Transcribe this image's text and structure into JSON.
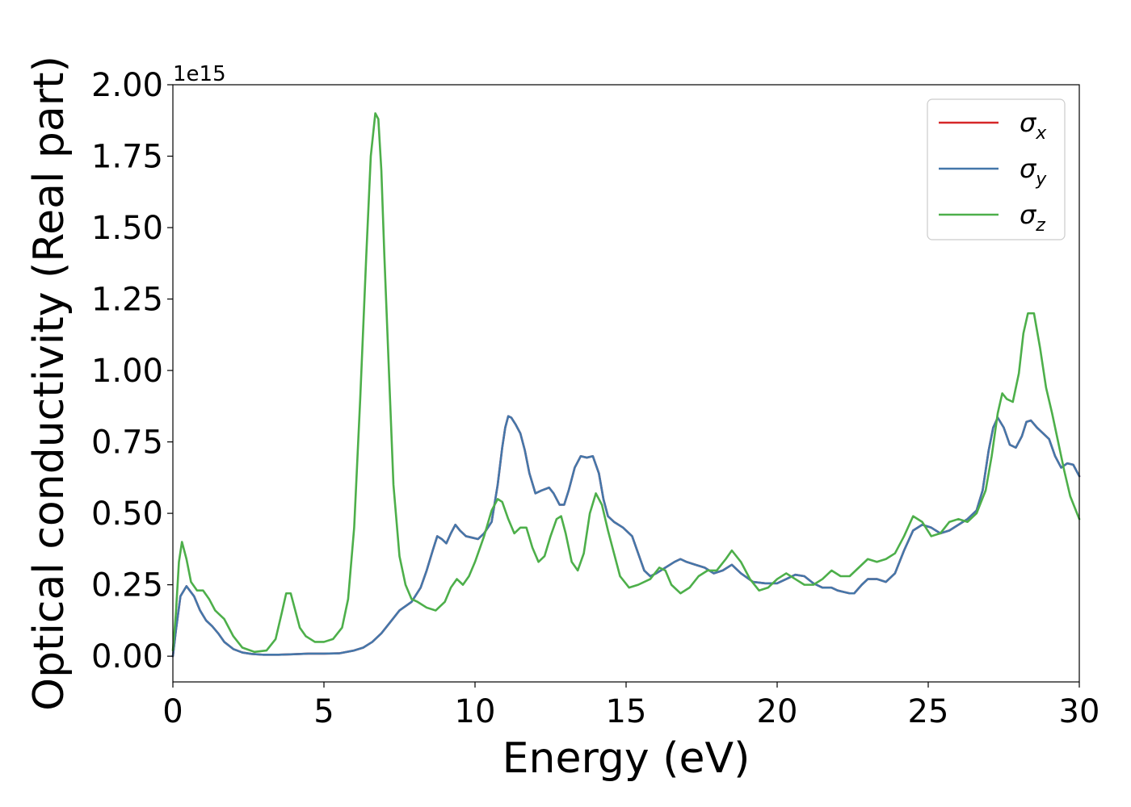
{
  "chart_data": {
    "type": "line",
    "xlabel": "Energy (eV)",
    "ylabel": "Optical conductivity (Real part)",
    "offset_text": "1e15",
    "xlim": [
      0,
      30
    ],
    "ylim": [
      -0.09,
      2.0
    ],
    "xticks": [
      0,
      5,
      10,
      15,
      20,
      25,
      30
    ],
    "xtick_labels": [
      "0",
      "5",
      "10",
      "15",
      "20",
      "25",
      "30"
    ],
    "yticks": [
      0.0,
      0.25,
      0.5,
      0.75,
      1.0,
      1.25,
      1.5,
      1.75,
      2.0
    ],
    "ytick_labels": [
      "0.00",
      "0.25",
      "0.50",
      "0.75",
      "1.00",
      "1.25",
      "1.50",
      "1.75",
      "2.00"
    ],
    "grid": false,
    "legend_position": "top-right",
    "series": [
      {
        "name": "σx",
        "name_base": "σ",
        "name_sub": "x",
        "color": "#d62728",
        "x": [
          0,
          0.1,
          0.25,
          0.45,
          0.7,
          0.9,
          1.1,
          1.3,
          1.5,
          1.7,
          2.0,
          2.3,
          2.6,
          3.0,
          3.5,
          4.0,
          4.5,
          5.0,
          5.5,
          6.0,
          6.3,
          6.6,
          6.9,
          7.2,
          7.5,
          7.9,
          8.2,
          8.4,
          8.6,
          8.75,
          8.9,
          9.05,
          9.2,
          9.35,
          9.5,
          9.7,
          9.9,
          10.1,
          10.3,
          10.55,
          10.75,
          10.9,
          11.0,
          11.1,
          11.2,
          11.35,
          11.5,
          11.65,
          11.8,
          12.0,
          12.2,
          12.45,
          12.6,
          12.8,
          12.95,
          13.1,
          13.3,
          13.5,
          13.7,
          13.9,
          14.1,
          14.25,
          14.4,
          14.6,
          14.9,
          15.2,
          15.4,
          15.6,
          15.8,
          16.0,
          16.3,
          16.6,
          16.8,
          17.0,
          17.3,
          17.6,
          17.9,
          18.2,
          18.5,
          18.8,
          19.2,
          19.6,
          20.0,
          20.3,
          20.6,
          20.9,
          21.2,
          21.5,
          21.8,
          22.0,
          22.2,
          22.4,
          22.55,
          22.8,
          23.0,
          23.3,
          23.6,
          23.9,
          24.2,
          24.5,
          24.8,
          25.1,
          25.4,
          25.7,
          26.0,
          26.3,
          26.6,
          26.8,
          27.0,
          27.15,
          27.3,
          27.5,
          27.7,
          27.9,
          28.1,
          28.25,
          28.4,
          28.6,
          28.8,
          29.0,
          29.2,
          29.4,
          29.6,
          29.8,
          30.0
        ],
        "y": [
          0.0,
          0.09,
          0.21,
          0.245,
          0.21,
          0.16,
          0.125,
          0.105,
          0.08,
          0.05,
          0.025,
          0.013,
          0.008,
          0.005,
          0.005,
          0.007,
          0.009,
          0.009,
          0.01,
          0.02,
          0.03,
          0.05,
          0.08,
          0.12,
          0.16,
          0.19,
          0.24,
          0.3,
          0.37,
          0.42,
          0.41,
          0.395,
          0.43,
          0.46,
          0.44,
          0.42,
          0.415,
          0.41,
          0.43,
          0.47,
          0.6,
          0.73,
          0.8,
          0.84,
          0.835,
          0.81,
          0.78,
          0.72,
          0.64,
          0.57,
          0.58,
          0.59,
          0.57,
          0.53,
          0.53,
          0.58,
          0.66,
          0.7,
          0.695,
          0.7,
          0.64,
          0.55,
          0.49,
          0.47,
          0.45,
          0.42,
          0.36,
          0.3,
          0.28,
          0.29,
          0.31,
          0.33,
          0.34,
          0.33,
          0.32,
          0.31,
          0.29,
          0.3,
          0.32,
          0.29,
          0.26,
          0.255,
          0.255,
          0.27,
          0.285,
          0.28,
          0.255,
          0.24,
          0.24,
          0.23,
          0.225,
          0.22,
          0.22,
          0.25,
          0.27,
          0.27,
          0.26,
          0.29,
          0.37,
          0.44,
          0.46,
          0.45,
          0.43,
          0.44,
          0.46,
          0.48,
          0.51,
          0.58,
          0.72,
          0.8,
          0.835,
          0.8,
          0.74,
          0.73,
          0.77,
          0.82,
          0.825,
          0.8,
          0.78,
          0.76,
          0.7,
          0.66,
          0.675,
          0.67,
          0.63
        ]
      },
      {
        "name": "σy",
        "name_base": "σ",
        "name_sub": "y",
        "color": "#4477aa",
        "x": [
          0,
          0.1,
          0.25,
          0.45,
          0.7,
          0.9,
          1.1,
          1.3,
          1.5,
          1.7,
          2.0,
          2.3,
          2.6,
          3.0,
          3.5,
          4.0,
          4.5,
          5.0,
          5.5,
          6.0,
          6.3,
          6.6,
          6.9,
          7.2,
          7.5,
          7.9,
          8.2,
          8.4,
          8.6,
          8.75,
          8.9,
          9.05,
          9.2,
          9.35,
          9.5,
          9.7,
          9.9,
          10.1,
          10.3,
          10.55,
          10.75,
          10.9,
          11.0,
          11.1,
          11.2,
          11.35,
          11.5,
          11.65,
          11.8,
          12.0,
          12.2,
          12.45,
          12.6,
          12.8,
          12.95,
          13.1,
          13.3,
          13.5,
          13.7,
          13.9,
          14.1,
          14.25,
          14.4,
          14.6,
          14.9,
          15.2,
          15.4,
          15.6,
          15.8,
          16.0,
          16.3,
          16.6,
          16.8,
          17.0,
          17.3,
          17.6,
          17.9,
          18.2,
          18.5,
          18.8,
          19.2,
          19.6,
          20.0,
          20.3,
          20.6,
          20.9,
          21.2,
          21.5,
          21.8,
          22.0,
          22.2,
          22.4,
          22.55,
          22.8,
          23.0,
          23.3,
          23.6,
          23.9,
          24.2,
          24.5,
          24.8,
          25.1,
          25.4,
          25.7,
          26.0,
          26.3,
          26.6,
          26.8,
          27.0,
          27.15,
          27.3,
          27.5,
          27.7,
          27.9,
          28.1,
          28.25,
          28.4,
          28.6,
          28.8,
          29.0,
          29.2,
          29.4,
          29.6,
          29.8,
          30.0
        ],
        "y": [
          0.0,
          0.09,
          0.21,
          0.245,
          0.21,
          0.16,
          0.125,
          0.105,
          0.08,
          0.05,
          0.025,
          0.013,
          0.008,
          0.005,
          0.005,
          0.007,
          0.009,
          0.009,
          0.01,
          0.02,
          0.03,
          0.05,
          0.08,
          0.12,
          0.16,
          0.19,
          0.24,
          0.3,
          0.37,
          0.42,
          0.41,
          0.395,
          0.43,
          0.46,
          0.44,
          0.42,
          0.415,
          0.41,
          0.43,
          0.47,
          0.6,
          0.73,
          0.8,
          0.84,
          0.835,
          0.81,
          0.78,
          0.72,
          0.64,
          0.57,
          0.58,
          0.59,
          0.57,
          0.53,
          0.53,
          0.58,
          0.66,
          0.7,
          0.695,
          0.7,
          0.64,
          0.55,
          0.49,
          0.47,
          0.45,
          0.42,
          0.36,
          0.3,
          0.28,
          0.29,
          0.31,
          0.33,
          0.34,
          0.33,
          0.32,
          0.31,
          0.29,
          0.3,
          0.32,
          0.29,
          0.26,
          0.255,
          0.255,
          0.27,
          0.285,
          0.28,
          0.255,
          0.24,
          0.24,
          0.23,
          0.225,
          0.22,
          0.22,
          0.25,
          0.27,
          0.27,
          0.26,
          0.29,
          0.37,
          0.44,
          0.46,
          0.45,
          0.43,
          0.44,
          0.46,
          0.48,
          0.51,
          0.58,
          0.72,
          0.8,
          0.835,
          0.8,
          0.74,
          0.73,
          0.77,
          0.82,
          0.825,
          0.8,
          0.78,
          0.76,
          0.7,
          0.66,
          0.675,
          0.67,
          0.63
        ]
      },
      {
        "name": "σz",
        "name_base": "σ",
        "name_sub": "z",
        "color": "#4daf4a",
        "x": [
          0,
          0.1,
          0.2,
          0.3,
          0.45,
          0.6,
          0.8,
          1.0,
          1.2,
          1.4,
          1.7,
          2.0,
          2.3,
          2.7,
          3.1,
          3.4,
          3.6,
          3.75,
          3.9,
          4.05,
          4.2,
          4.4,
          4.7,
          5.0,
          5.3,
          5.6,
          5.8,
          6.0,
          6.2,
          6.4,
          6.55,
          6.7,
          6.8,
          6.9,
          7.0,
          7.15,
          7.3,
          7.5,
          7.7,
          7.9,
          8.1,
          8.4,
          8.7,
          9.0,
          9.2,
          9.4,
          9.6,
          9.8,
          10.0,
          10.3,
          10.55,
          10.75,
          10.9,
          11.1,
          11.3,
          11.5,
          11.7,
          11.9,
          12.1,
          12.3,
          12.5,
          12.7,
          12.85,
          13.0,
          13.2,
          13.4,
          13.6,
          13.8,
          14.0,
          14.2,
          14.4,
          14.6,
          14.8,
          15.1,
          15.4,
          15.8,
          16.1,
          16.3,
          16.5,
          16.8,
          17.1,
          17.4,
          17.7,
          18.0,
          18.3,
          18.5,
          18.8,
          19.1,
          19.4,
          19.7,
          20.0,
          20.3,
          20.6,
          20.9,
          21.2,
          21.5,
          21.8,
          22.1,
          22.4,
          22.7,
          23.0,
          23.3,
          23.6,
          23.9,
          24.2,
          24.5,
          24.8,
          25.1,
          25.4,
          25.7,
          26.0,
          26.3,
          26.6,
          26.9,
          27.1,
          27.3,
          27.45,
          27.6,
          27.8,
          28.0,
          28.15,
          28.3,
          28.5,
          28.7,
          28.9,
          29.1,
          29.3,
          29.5,
          29.7,
          30.0
        ],
        "y": [
          0.02,
          0.15,
          0.33,
          0.4,
          0.34,
          0.26,
          0.23,
          0.23,
          0.2,
          0.16,
          0.13,
          0.07,
          0.03,
          0.015,
          0.02,
          0.06,
          0.15,
          0.22,
          0.22,
          0.16,
          0.1,
          0.07,
          0.05,
          0.05,
          0.06,
          0.1,
          0.2,
          0.45,
          0.9,
          1.4,
          1.75,
          1.9,
          1.88,
          1.7,
          1.4,
          1.0,
          0.6,
          0.35,
          0.25,
          0.2,
          0.19,
          0.17,
          0.16,
          0.19,
          0.24,
          0.27,
          0.25,
          0.28,
          0.33,
          0.42,
          0.51,
          0.55,
          0.54,
          0.48,
          0.43,
          0.45,
          0.45,
          0.38,
          0.33,
          0.35,
          0.42,
          0.48,
          0.49,
          0.43,
          0.33,
          0.3,
          0.36,
          0.5,
          0.57,
          0.53,
          0.44,
          0.36,
          0.28,
          0.24,
          0.25,
          0.27,
          0.31,
          0.3,
          0.25,
          0.22,
          0.24,
          0.28,
          0.3,
          0.3,
          0.34,
          0.37,
          0.33,
          0.27,
          0.23,
          0.24,
          0.27,
          0.29,
          0.27,
          0.25,
          0.25,
          0.27,
          0.3,
          0.28,
          0.28,
          0.31,
          0.34,
          0.33,
          0.34,
          0.36,
          0.42,
          0.49,
          0.47,
          0.42,
          0.43,
          0.47,
          0.48,
          0.47,
          0.5,
          0.58,
          0.7,
          0.85,
          0.92,
          0.9,
          0.89,
          0.99,
          1.13,
          1.2,
          1.2,
          1.08,
          0.94,
          0.85,
          0.75,
          0.65,
          0.56,
          0.48
        ]
      }
    ]
  }
}
